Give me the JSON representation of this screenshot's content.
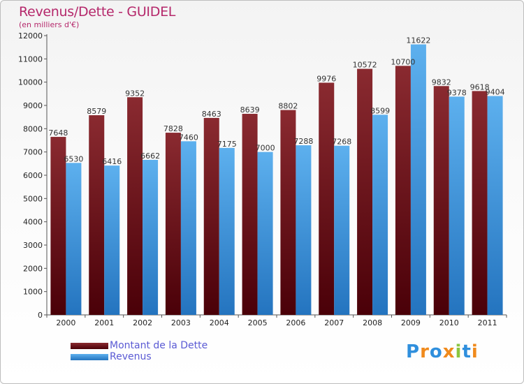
{
  "header": {
    "title": "Revenus/Dette - GUIDEL",
    "subtitle": "(en milliers d'€)"
  },
  "colors": {
    "dette": "#6e0f16",
    "revenus": "#3a92de",
    "title": "#b5286b",
    "legend_text": "#5a5ad4"
  },
  "legend": {
    "items": [
      {
        "label": "Montant de la Dette",
        "color": "#6e0f16"
      },
      {
        "label": "Revenus",
        "color": "#3a92de"
      }
    ]
  },
  "logo": {
    "text": "Proxiti",
    "letters": [
      {
        "ch": "P",
        "color": "#2f8fdd"
      },
      {
        "ch": "r",
        "color": "#f08a1c"
      },
      {
        "ch": "o",
        "color": "#2f8fdd"
      },
      {
        "ch": "x",
        "color": "#f08a1c"
      },
      {
        "ch": "i",
        "color": "#8cc63f"
      },
      {
        "ch": "t",
        "color": "#2f8fdd"
      },
      {
        "ch": "i",
        "color": "#f08a1c"
      }
    ]
  },
  "chart_data": {
    "type": "bar",
    "title": "Revenus/Dette - GUIDEL",
    "subtitle": "(en milliers d'€)",
    "categories": [
      "2000",
      "2001",
      "2002",
      "2003",
      "2004",
      "2005",
      "2006",
      "2007",
      "2008",
      "2009",
      "2010",
      "2011"
    ],
    "series": [
      {
        "name": "Montant de la Dette",
        "values": [
          7648,
          8579,
          9352,
          7828,
          8463,
          8639,
          8802,
          9976,
          10572,
          10700,
          9832,
          9618
        ],
        "labels": [
          "7648",
          "8579",
          "9352",
          "7828",
          "8463",
          "8639",
          "8802",
          "9976",
          "10572",
          "10700",
          "9832",
          "9618"
        ]
      },
      {
        "name": "Revenus",
        "values": [
          6530,
          6416,
          6662,
          7460,
          7175,
          7000,
          7288,
          7268,
          8599,
          11622,
          9378,
          9404
        ],
        "labels": [
          "6530",
          "6416",
          "6662",
          "7460",
          "7175",
          "7000",
          "7288",
          "7268",
          "8599",
          "11622",
          "9378",
          "9404"
        ]
      }
    ],
    "yticks": [
      0,
      1000,
      2000,
      3000,
      4000,
      5000,
      6000,
      7000,
      8000,
      9000,
      10000,
      11000,
      12000
    ],
    "ylim": [
      0,
      12000
    ],
    "grid": false,
    "legend_position": "bottom-left"
  }
}
